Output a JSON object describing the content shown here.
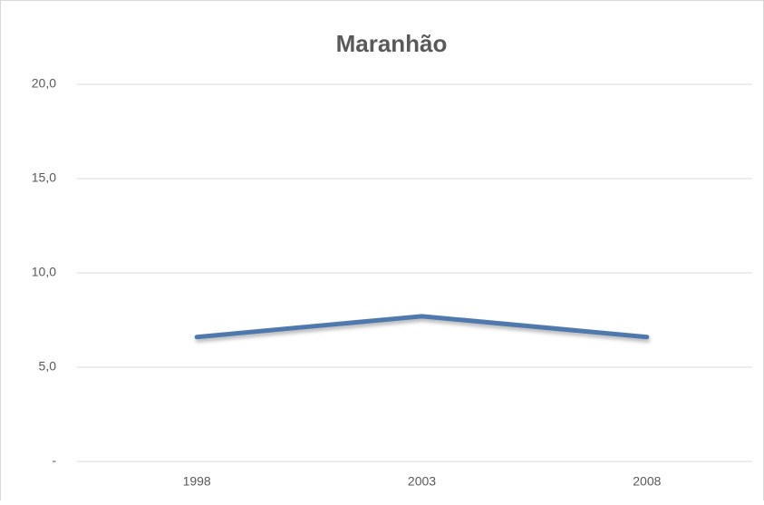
{
  "chart_data": {
    "type": "line",
    "title": "Maranhão",
    "categories": [
      "1998",
      "2003",
      "2008"
    ],
    "series": [
      {
        "name": "Maranhão",
        "color": "#4f79ad",
        "values": [
          6.6,
          7.7,
          6.6
        ]
      }
    ],
    "ylim": [
      0,
      20
    ],
    "yticks": [
      {
        "value": 0,
        "label": "-"
      },
      {
        "value": 5,
        "label": "5,0"
      },
      {
        "value": 10,
        "label": "10,0"
      },
      {
        "value": 15,
        "label": "15,0"
      },
      {
        "value": 20,
        "label": "20,0"
      }
    ],
    "grid": true
  }
}
